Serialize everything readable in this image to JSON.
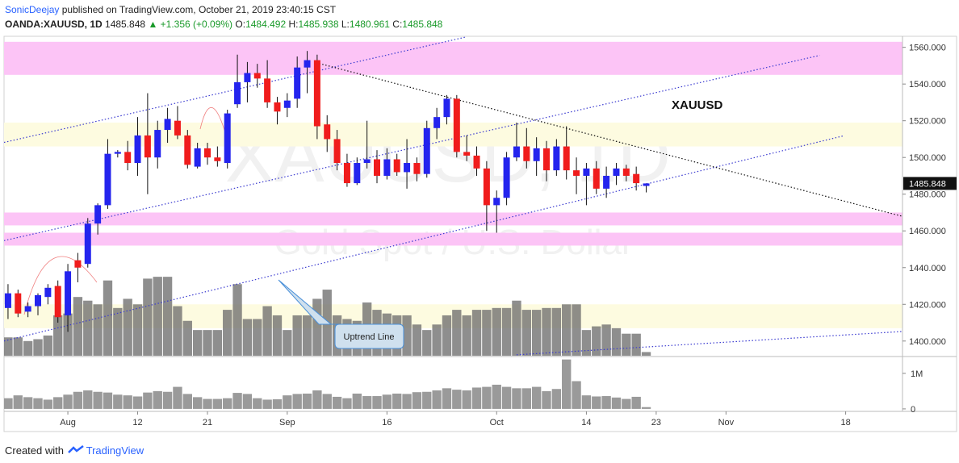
{
  "header": {
    "author": "SonicDeejay",
    "published": "published on TradingView.com, October 21, 2019 23:40:15 CST",
    "symbol": "OANDA:XAUUSD, 1D",
    "change": "▲ +1.356 (+0.09%)",
    "ohlc_labels": [
      "O:",
      "H:",
      "L:",
      "C:"
    ]
  },
  "footer": {
    "created": "Created with",
    "brand": "TradingView"
  },
  "chart_data": {
    "type": "candlestick",
    "watermark": "XAUUSD, 1D",
    "watermark_sub": "Gold Spot / U.S. Dollar",
    "label": "XAUUSD",
    "callout": "Uptrend Line",
    "up_color": "#2424ee",
    "down_color": "#f01c1c",
    "open": [
      1418,
      1426,
      1416,
      1419,
      1424,
      1430,
      1414,
      1444,
      1442,
      1464,
      1474,
      1502,
      1503,
      1497,
      1512,
      1500,
      1515,
      1520,
      1512,
      1495,
      1505,
      1500,
      1497,
      1529,
      1541,
      1546,
      1543,
      1530,
      1527,
      1532,
      1549,
      1553,
      1518,
      1510,
      1497,
      1486,
      1497,
      1499,
      1490,
      1499,
      1492,
      1497,
      1491,
      1516,
      1522,
      1532,
      1503,
      1501,
      1494,
      1474,
      1478,
      1500,
      1506,
      1498,
      1505,
      1493,
      1506,
      1493,
      1490,
      1494,
      1483,
      1490,
      1494,
      1491,
      1484.492
    ],
    "high": [
      1431,
      1428,
      1421,
      1426,
      1431,
      1433,
      1442,
      1448,
      1467,
      1475,
      1510,
      1504,
      1509,
      1522,
      1535,
      1520,
      1527,
      1528,
      1515,
      1508,
      1508,
      1506,
      1526,
      1556,
      1552,
      1551,
      1553,
      1533,
      1535,
      1555,
      1558,
      1556,
      1523,
      1515,
      1502,
      1500,
      1520,
      1504,
      1505,
      1502,
      1510,
      1500,
      1520,
      1527,
      1534,
      1534,
      1512,
      1506,
      1498,
      1482,
      1503,
      1519,
      1516,
      1511,
      1509,
      1510,
      1517,
      1500,
      1497,
      1498,
      1495,
      1497,
      1496,
      1495,
      1485.938
    ],
    "low": [
      1412,
      1413,
      1413,
      1414,
      1420,
      1410,
      1405,
      1432,
      1440,
      1458,
      1472,
      1500,
      1493,
      1490,
      1480,
      1494,
      1508,
      1510,
      1494,
      1494,
      1496,
      1495,
      1494,
      1527,
      1530,
      1538,
      1527,
      1518,
      1522,
      1527,
      1535,
      1510,
      1503,
      1493,
      1484,
      1485,
      1494,
      1486,
      1488,
      1490,
      1483,
      1487,
      1489,
      1510,
      1518,
      1500,
      1498,
      1490,
      1460,
      1459,
      1474,
      1498,
      1494,
      1490,
      1487,
      1490,
      1488,
      1480,
      1474,
      1480,
      1478,
      1485,
      1487,
      1482,
      1480.961
    ],
    "close": [
      1426,
      1415,
      1419,
      1425,
      1429,
      1413,
      1438,
      1440,
      1464,
      1474,
      1502,
      1503,
      1497,
      1512,
      1500,
      1515,
      1521,
      1512,
      1496,
      1505,
      1500,
      1498,
      1524,
      1541,
      1546,
      1543,
      1530,
      1525,
      1531,
      1549,
      1553,
      1517,
      1510,
      1497,
      1486,
      1497,
      1499,
      1490,
      1499,
      1492,
      1497,
      1491,
      1516,
      1522,
      1532,
      1503,
      1501,
      1494,
      1474,
      1478,
      1500,
      1506,
      1498,
      1505,
      1493,
      1506,
      1493,
      1490,
      1494,
      1483,
      1490,
      1494,
      1490,
      1486,
      1485.848
    ],
    "xlim": [
      -0.4,
      89.7
    ],
    "xticks": [
      {
        "value": 6,
        "label": "Aug"
      },
      {
        "value": 13,
        "label": "12"
      },
      {
        "value": 20,
        "label": "21"
      },
      {
        "value": 28,
        "label": "Sep"
      },
      {
        "value": 38,
        "label": "16"
      },
      {
        "value": 49,
        "label": "Oct"
      },
      {
        "value": 58,
        "label": "14"
      },
      {
        "value": 65,
        "label": "23"
      },
      {
        "value": 72,
        "label": "Nov"
      },
      {
        "value": 84,
        "label": "18"
      }
    ],
    "ylim": [
      1392,
      1566
    ],
    "yticks": [
      {
        "value": 1400,
        "label": "1400.000"
      },
      {
        "value": 1420,
        "label": "1420.000"
      },
      {
        "value": 1440,
        "label": "1440.000"
      },
      {
        "value": 1460,
        "label": "1460.000"
      },
      {
        "value": 1480,
        "label": "1480.000"
      },
      {
        "value": 1500,
        "label": "1500.000"
      },
      {
        "value": 1520,
        "label": "1520.000"
      },
      {
        "value": 1540,
        "label": "1540.000"
      },
      {
        "value": 1560,
        "label": "1560.000"
      }
    ],
    "zones": [
      {
        "from": 1545,
        "to": 1563,
        "color": "#fcc4f6"
      },
      {
        "from": 1506,
        "to": 1519,
        "color": "#fdfbe0"
      },
      {
        "from": 1463,
        "to": 1470,
        "color": "#fcc4f6"
      },
      {
        "from": 1452,
        "to": 1459,
        "color": "#fcc4f6"
      },
      {
        "from": 1407,
        "to": 1420,
        "color": "#fdfbe0"
      }
    ],
    "lines": [
      {
        "x": [
          -0.4,
          46
        ],
        "y": [
          1508.2,
          1565.7
        ],
        "color": "#3a3ad0"
      },
      {
        "x": [
          -0.4,
          81.4
        ],
        "y": [
          1454.7,
          1555.6
        ],
        "color": "#3a3ad0"
      },
      {
        "x": [
          -0.4,
          83.8
        ],
        "y": [
          1400,
          1511.8
        ],
        "color": "#3a3ad0"
      },
      {
        "x": [
          51,
          89.7
        ],
        "y": [
          1392.5,
          1405.2
        ],
        "color": "#3a3ad0"
      },
      {
        "x": [
          31.2,
          89.7
        ],
        "y": [
          1551.2,
          1467.9
        ],
        "color": "#111111"
      }
    ],
    "overlay_volume": {
      "color": "#6e6e6e",
      "values": [
        1402,
        1402,
        1400,
        1401,
        1403,
        1414,
        1415,
        1424,
        1422,
        1420,
        1433,
        1418,
        1423,
        1420,
        1434,
        1435,
        1435,
        1419,
        1411,
        1406,
        1406,
        1406,
        1417,
        1431,
        1412,
        1412,
        1419,
        1414,
        1406,
        1414,
        1414,
        1423,
        1428,
        1414,
        1412,
        1411,
        1421,
        1417,
        1415,
        1414,
        1414,
        1409,
        1406,
        1409,
        1414,
        1417,
        1414,
        1417,
        1417,
        1418,
        1418,
        1422,
        1417,
        1417,
        1418,
        1418,
        1420,
        1420,
        1406,
        1408,
        1409,
        1407,
        1404,
        1404,
        1394
      ]
    },
    "volume": {
      "color": "#9a9a9a",
      "ylim": [
        -70000,
        1450000
      ],
      "yticks": [
        0,
        {
          "value": 1000000,
          "label": "1M"
        }
      ],
      "values": [
        300000,
        380000,
        330000,
        300000,
        260000,
        330000,
        400000,
        480000,
        520000,
        480000,
        460000,
        400000,
        380000,
        350000,
        460000,
        500000,
        480000,
        620000,
        420000,
        330000,
        280000,
        280000,
        300000,
        450000,
        420000,
        300000,
        260000,
        270000,
        380000,
        420000,
        430000,
        520000,
        420000,
        340000,
        300000,
        430000,
        360000,
        360000,
        400000,
        430000,
        420000,
        470000,
        480000,
        520000,
        580000,
        540000,
        520000,
        600000,
        620000,
        680000,
        620000,
        580000,
        580000,
        620000,
        500000,
        560000,
        1390000,
        780000,
        380000,
        350000,
        360000,
        320000,
        280000,
        340000,
        50000
      ]
    }
  }
}
